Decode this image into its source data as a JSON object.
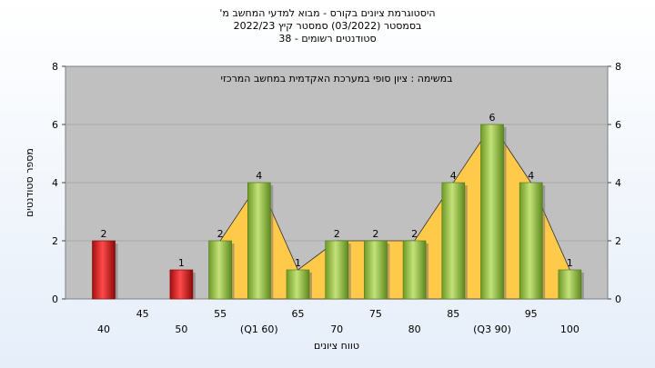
{
  "chart_data": {
    "type": "bar",
    "title_lines": [
      "היסטוגרמת ציונים בקורס - מבוא למדעי המחשב מ'",
      "בסמסטר  (03/2022)  סמסטר קיץ 2022/23",
      "סטודנטים רשומים - 38"
    ],
    "annotation": "במשימה : ציון סופי במערכת האקדמית במחשב המרכזי",
    "xlabel": "טווח ציונים",
    "ylabel": "מספר סטודנטים",
    "ylim": [
      0,
      8
    ],
    "yticks": [
      0,
      2,
      4,
      6,
      8
    ],
    "categories": [
      "40",
      "45",
      "50",
      "55",
      "(Q1 60)",
      "65",
      "70",
      "75",
      "80",
      "85",
      "(Q3 90)",
      "95",
      "100"
    ],
    "values": [
      2,
      0,
      1,
      2,
      4,
      1,
      2,
      2,
      2,
      4,
      6,
      4,
      1
    ],
    "value_labels": [
      "2",
      "",
      "1",
      "2",
      "4",
      "1",
      "2",
      "2",
      "2",
      "4",
      "6",
      "4",
      "1"
    ],
    "failing_color": "#d42020",
    "passing_color": "#8fbf3a",
    "area_color": "#ffc94a",
    "plot_bg": "#c0c0c0",
    "grid": true,
    "legend": "none"
  }
}
